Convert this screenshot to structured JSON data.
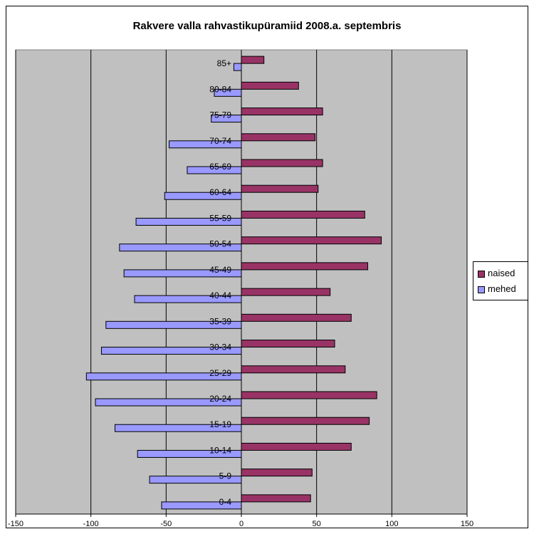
{
  "chart_data": {
    "type": "bar",
    "orientation": "horizontal",
    "title": "Rakvere valla rahvastikupüramiid 2008.a. septembris",
    "categories": [
      "0-4",
      "5-9",
      "10-14",
      "15-19",
      "20-24",
      "25-29",
      "30-34",
      "35-39",
      "40-44",
      "45-49",
      "50-54",
      "55-59",
      "60-64",
      "65-69",
      "70-74",
      "75-79",
      "80-84",
      "85+"
    ],
    "series": [
      {
        "name": "naised",
        "color": "#993366",
        "values": [
          46,
          47,
          73,
          85,
          90,
          69,
          62,
          73,
          59,
          84,
          93,
          82,
          51,
          54,
          49,
          54,
          38,
          15
        ]
      },
      {
        "name": "mehed",
        "color": "#9999ff",
        "values": [
          -53,
          -61,
          -69,
          -84,
          -97,
          -103,
          -93,
          -90,
          -71,
          -78,
          -81,
          -70,
          -51,
          -36,
          -48,
          -20,
          -18,
          -5
        ]
      }
    ],
    "xlim": [
      -150,
      150
    ],
    "xticks": [
      -150,
      -100,
      -50,
      0,
      50,
      100,
      150
    ],
    "xticklabels": [
      "-150",
      "-100",
      "-50",
      "0",
      "50",
      "100",
      "150"
    ],
    "grid": true,
    "plot_background": "#c0c0c0",
    "legend_position": "right"
  }
}
